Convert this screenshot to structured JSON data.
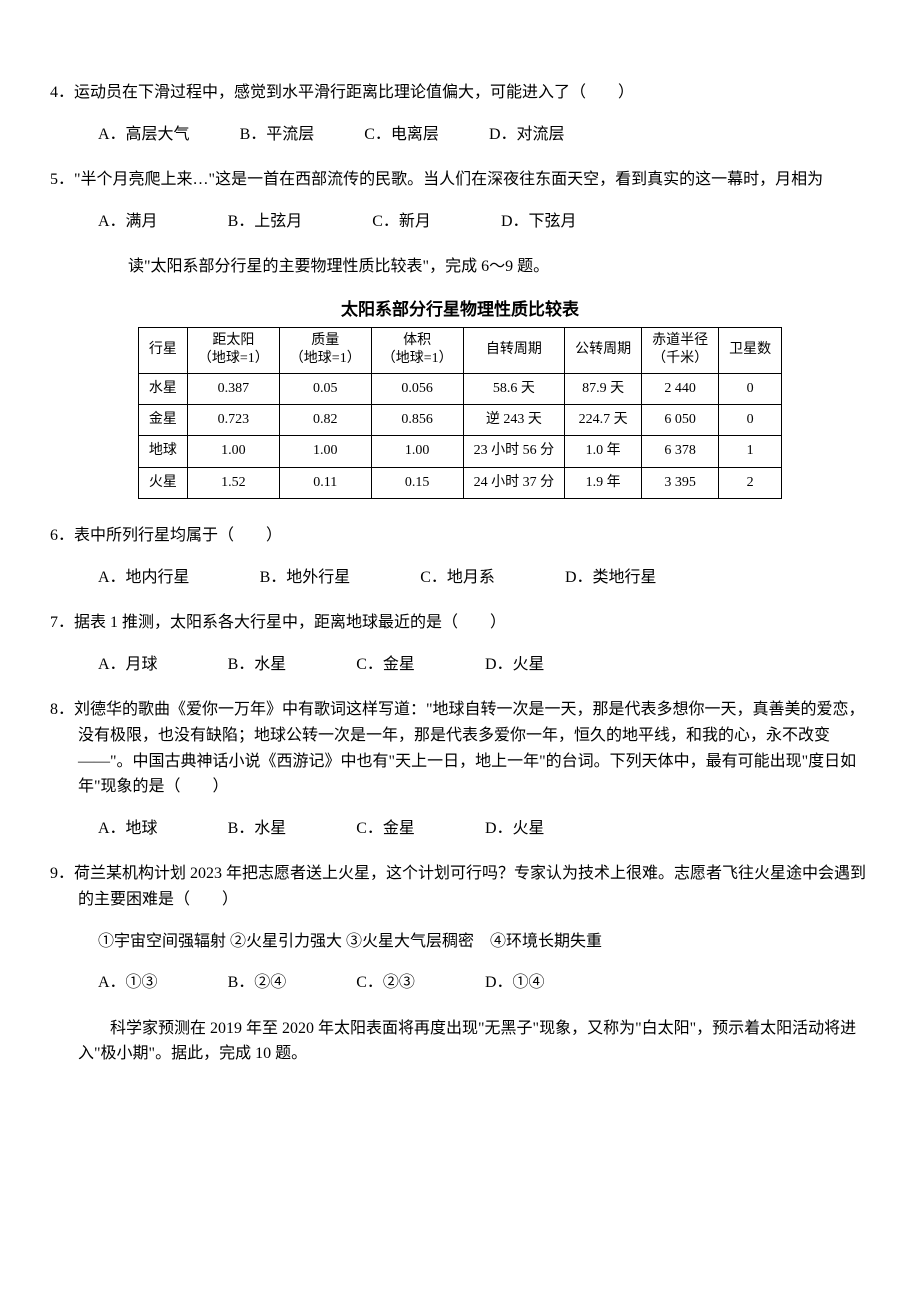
{
  "q4": {
    "stem": "4．运动员在下滑过程中，感觉到水平滑行距离比理论值偏大，可能进入了（　　）",
    "options": {
      "a": "A．高层大气",
      "b": "B．平流层",
      "c": "C．电离层",
      "d": "D．对流层"
    }
  },
  "q5": {
    "stem": "5．\"半个月亮爬上来…\"这是一首在西部流传的民歌。当人们在深夜往东面天空，看到真实的这一幕时，月相为",
    "options": {
      "a": "A．满月",
      "b": "B．上弦月",
      "c": "C．新月",
      "d": "D．下弦月"
    }
  },
  "instruction1": "读\"太阳系部分行星的主要物理性质比较表\"，完成 6～9 题。",
  "table": {
    "title": "太阳系部分行星物理性质比较表",
    "headers": {
      "planet": "行星",
      "distance": {
        "l1": "距太阳",
        "l2": "（地球=1）"
      },
      "mass": {
        "l1": "质量",
        "l2": "（地球=1）"
      },
      "volume": {
        "l1": "体积",
        "l2": "（地球=1）"
      },
      "rotation": "自转周期",
      "revolution": "公转周期",
      "radius": {
        "l1": "赤道半径",
        "l2": "（千米）"
      },
      "moons": "卫星数"
    },
    "rows": [
      {
        "planet": "水星",
        "distance": "0.387",
        "mass": "0.05",
        "volume": "0.056",
        "rotation": "58.6 天",
        "revolution": "87.9 天",
        "radius": "2 440",
        "moons": "0"
      },
      {
        "planet": "金星",
        "distance": "0.723",
        "mass": "0.82",
        "volume": "0.856",
        "rotation": "逆 243 天",
        "revolution": "224.7 天",
        "radius": "6 050",
        "moons": "0"
      },
      {
        "planet": "地球",
        "distance": "1.00",
        "mass": "1.00",
        "volume": "1.00",
        "rotation": "23 小时 56 分",
        "revolution": "1.0 年",
        "radius": "6 378",
        "moons": "1"
      },
      {
        "planet": "火星",
        "distance": "1.52",
        "mass": "0.11",
        "volume": "0.15",
        "rotation": "24 小时 37 分",
        "revolution": "1.9 年",
        "radius": "3 395",
        "moons": "2"
      }
    ]
  },
  "q6": {
    "stem": "6．表中所列行星均属于（　　）",
    "options": {
      "a": "A．地内行星",
      "b": "B．地外行星",
      "c": "C．地月系",
      "d": "D．类地行星"
    }
  },
  "q7": {
    "stem": "7．据表 1 推测，太阳系各大行星中，距离地球最近的是（　　）",
    "options": {
      "a": "A．月球",
      "b": "B．水星",
      "c": "C．金星",
      "d": "D．火星"
    }
  },
  "q8": {
    "stem": "8．刘德华的歌曲《爱你一万年》中有歌词这样写道：\"地球自转一次是一天，那是代表多想你一天，真善美的爱恋，没有极限，也没有缺陷；地球公转一次是一年，那是代表多爱你一年，恒久的地平线，和我的心，永不改变——\"。中国古典神话小说《西游记》中也有\"天上一日，地上一年\"的台词。下列天体中，最有可能出现\"度日如年\"现象的是（　　）",
    "options": {
      "a": "A．地球",
      "b": "B．水星",
      "c": "C．金星",
      "d": "D．火星"
    }
  },
  "q9": {
    "stem": "9．荷兰某机构计划 2023 年把志愿者送上火星，这个计划可行吗？专家认为技术上很难。志愿者飞往火星途中会遇到的主要困难是（　　）",
    "items": "①宇宙空间强辐射  ②火星引力强大  ③火星大气层稠密　④环境长期失重",
    "options": {
      "a": "A．①③",
      "b": "B．②④",
      "c": "C．②③",
      "d": "D．①④"
    }
  },
  "context2": "科学家预测在 2019 年至 2020 年太阳表面将再度出现\"无黑子\"现象，又称为\"白太阳\"，预示着太阳活动将进入\"极小期\"。据此，完成 10 题。"
}
